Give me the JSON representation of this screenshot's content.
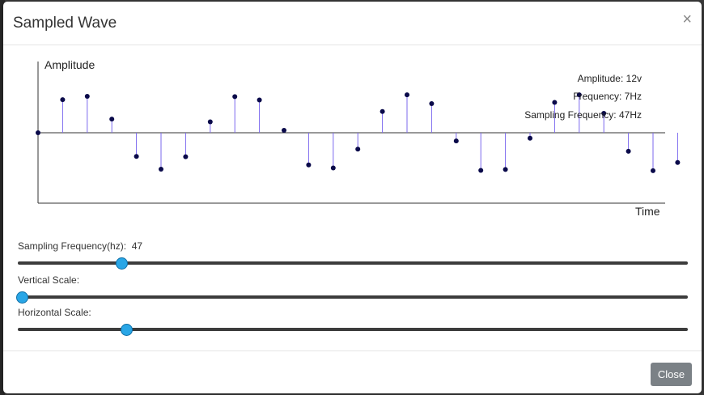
{
  "dialog": {
    "title": "Sampled Wave",
    "close_glyph": "×",
    "footer_close_label": "Close"
  },
  "chart_data": {
    "type": "stem",
    "ylabel": "Amplitude",
    "xlabel": "Time",
    "info": {
      "amplitude": "Amplitude: 12v",
      "frequency": "Frequency: 7Hz",
      "sampling_frequency": "Sampling Frequency: 47Hz"
    },
    "amplitude_range": [
      -12,
      12
    ],
    "samples": [
      0,
      10.9,
      12,
      4.5,
      -7.8,
      -12,
      -7.9,
      3.6,
      11.9,
      10.8,
      0.8,
      -10.6,
      -11.6,
      -5.4,
      7.0,
      12.5,
      9.6,
      -2.7,
      -12.4,
      -12.1,
      -1.8,
      10.0,
      12.5,
      6.4,
      -6.1,
      -12.5,
      -9.8
    ]
  },
  "controls": {
    "sampling_frequency": {
      "label": "Sampling Frequency(hz):",
      "value": "47",
      "position": 0.155
    },
    "vertical_scale": {
      "label": "Vertical Scale:",
      "position": 0.006
    },
    "horizontal_scale": {
      "label": "Horizontal Scale:",
      "position": 0.162
    }
  },
  "colors": {
    "stem": "#7b68ee",
    "marker": "#0a0a4a",
    "slider_thumb": "#29a6e6",
    "close_button": "#7b8186"
  }
}
